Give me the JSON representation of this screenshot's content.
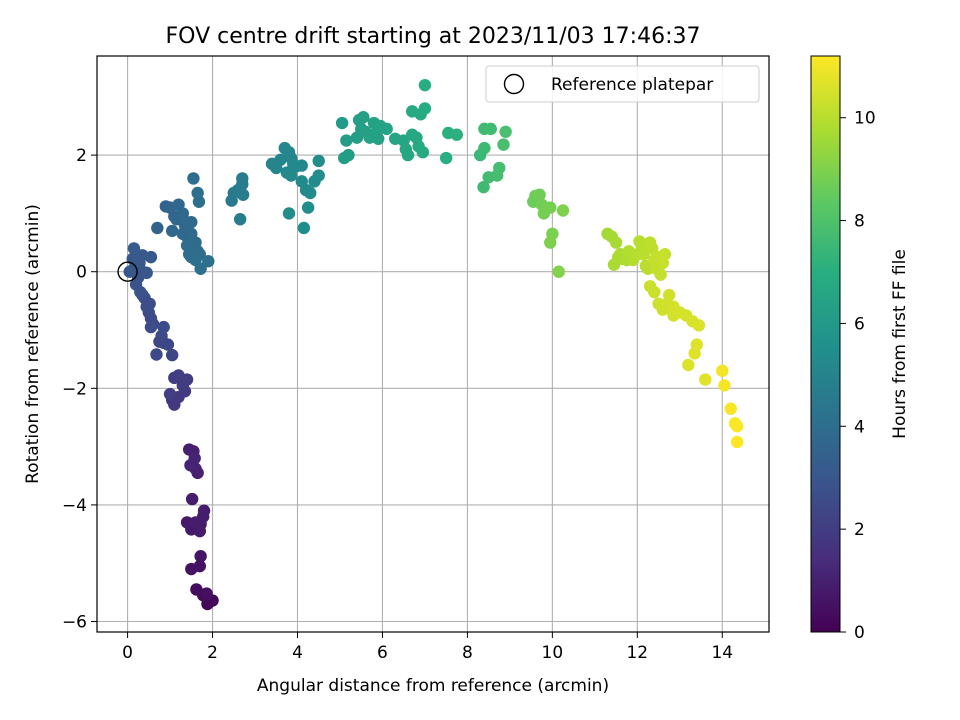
{
  "chart_data": {
    "type": "scatter",
    "title": "FOV centre drift starting at 2023/11/03 17:46:37",
    "xlabel": "Angular distance from reference (arcmin)",
    "ylabel": "Rotation from reference (arcmin)",
    "xlim": [
      -0.72,
      15.1
    ],
    "ylim": [
      -6.18,
      3.7
    ],
    "xticks": [
      "0",
      "2",
      "4",
      "6",
      "8",
      "10",
      "12",
      "14"
    ],
    "yticks": [
      "−6",
      "−4",
      "−2",
      "0",
      "2"
    ],
    "grid": true,
    "legend": {
      "placement": "top-right",
      "entries": [
        "Reference platepar"
      ]
    },
    "reference_point": {
      "x": 0,
      "y": 0
    },
    "colorbar": {
      "label": "Hours from first FF file",
      "colormap": "viridis",
      "range": [
        0,
        11.2
      ],
      "ticks": [
        "0",
        "2",
        "4",
        "6",
        "8",
        "10"
      ]
    },
    "series": [
      {
        "points": [
          [
            1.88,
            -5.7
          ],
          [
            2.0,
            -5.64
          ],
          [
            1.93,
            -5.66
          ],
          [
            1.78,
            -5.55
          ],
          [
            1.62,
            -5.45
          ],
          [
            1.86,
            -5.52
          ],
          [
            1.5,
            -5.1
          ],
          [
            1.7,
            -5.05
          ],
          [
            1.72,
            -4.88
          ],
          [
            1.4,
            -4.3
          ],
          [
            1.5,
            -4.42
          ],
          [
            1.62,
            -4.4
          ],
          [
            1.72,
            -4.33
          ],
          [
            1.78,
            -4.2
          ],
          [
            1.8,
            -4.1
          ],
          [
            1.7,
            -4.45
          ],
          [
            1.52,
            -3.9
          ],
          [
            1.6,
            -4.3
          ],
          [
            1.45,
            -3.05
          ],
          [
            1.55,
            -3.08
          ],
          [
            1.6,
            -3.38
          ],
          [
            1.65,
            -3.45
          ],
          [
            1.48,
            -3.32
          ],
          [
            1.58,
            -3.2
          ],
          [
            1.05,
            -2.2
          ],
          [
            1.1,
            -2.28
          ],
          [
            1.2,
            -2.15
          ],
          [
            1.35,
            -2.05
          ],
          [
            1.3,
            -1.95
          ],
          [
            1.4,
            -1.85
          ],
          [
            1.2,
            -1.78
          ],
          [
            1.1,
            -1.82
          ],
          [
            1.0,
            -2.1
          ],
          [
            0.75,
            -1.2
          ],
          [
            0.85,
            -1.22
          ],
          [
            0.95,
            -1.25
          ],
          [
            1.05,
            -1.43
          ],
          [
            0.68,
            -1.42
          ],
          [
            0.8,
            -1.1
          ],
          [
            0.6,
            -0.9
          ],
          [
            0.55,
            -0.8
          ],
          [
            0.5,
            -0.7
          ],
          [
            0.45,
            -0.6
          ],
          [
            0.52,
            -0.55
          ],
          [
            0.4,
            -0.45
          ],
          [
            0.35,
            -0.4
          ],
          [
            0.55,
            -0.95
          ],
          [
            0.85,
            -0.95
          ],
          [
            0.2,
            -0.22
          ],
          [
            0.3,
            -0.35
          ],
          [
            0.25,
            -0.1
          ],
          [
            0.15,
            0.05
          ],
          [
            0.35,
            0.0
          ],
          [
            0.45,
            -0.02
          ],
          [
            0.28,
            0.15
          ],
          [
            0.12,
            0.22
          ],
          [
            0.2,
            0.25
          ],
          [
            0.35,
            0.28
          ],
          [
            0.55,
            0.25
          ],
          [
            0.15,
            0.4
          ],
          [
            0.05,
            0.0
          ],
          [
            0.7,
            0.75
          ],
          [
            0.9,
            1.12
          ],
          [
            1.0,
            1.1
          ],
          [
            1.1,
            0.95
          ],
          [
            1.15,
            0.9
          ],
          [
            1.2,
            1.15
          ],
          [
            1.3,
            1.0
          ],
          [
            1.35,
            0.8
          ],
          [
            1.4,
            0.85
          ],
          [
            1.5,
            0.85
          ],
          [
            1.4,
            0.6
          ],
          [
            1.5,
            0.65
          ],
          [
            1.6,
            0.5
          ],
          [
            1.4,
            0.45
          ],
          [
            1.55,
            0.4
          ],
          [
            1.65,
            0.35
          ],
          [
            1.7,
            0.3
          ],
          [
            1.5,
            0.25
          ],
          [
            1.6,
            0.2
          ],
          [
            1.72,
            0.05
          ],
          [
            1.9,
            0.18
          ],
          [
            1.55,
            1.6
          ],
          [
            1.65,
            1.35
          ],
          [
            1.68,
            1.2
          ],
          [
            1.05,
            0.7
          ],
          [
            1.3,
            0.65
          ],
          [
            1.45,
            0.3
          ],
          [
            2.45,
            1.22
          ],
          [
            2.5,
            1.35
          ],
          [
            2.6,
            1.4
          ],
          [
            2.7,
            1.5
          ],
          [
            2.72,
            1.32
          ],
          [
            2.7,
            1.6
          ],
          [
            2.65,
            0.9
          ],
          [
            3.4,
            1.85
          ],
          [
            3.5,
            1.78
          ],
          [
            3.6,
            1.92
          ],
          [
            3.7,
            2.12
          ],
          [
            3.8,
            2.05
          ],
          [
            3.85,
            1.95
          ],
          [
            3.9,
            1.85
          ],
          [
            3.75,
            1.7
          ],
          [
            3.85,
            1.65
          ],
          [
            3.95,
            1.8
          ],
          [
            4.1,
            1.82
          ],
          [
            4.1,
            1.55
          ],
          [
            4.2,
            1.4
          ],
          [
            4.3,
            1.35
          ],
          [
            4.4,
            1.55
          ],
          [
            4.5,
            1.65
          ],
          [
            4.5,
            1.9
          ],
          [
            4.25,
            1.1
          ],
          [
            4.15,
            0.75
          ],
          [
            3.8,
            1.0
          ],
          [
            5.05,
            2.55
          ],
          [
            5.15,
            2.25
          ],
          [
            5.2,
            2.0
          ],
          [
            5.4,
            2.3
          ],
          [
            5.45,
            2.6
          ],
          [
            5.5,
            2.45
          ],
          [
            5.55,
            2.65
          ],
          [
            5.6,
            2.4
          ],
          [
            5.7,
            2.3
          ],
          [
            5.8,
            2.55
          ],
          [
            5.85,
            2.38
          ],
          [
            5.9,
            2.28
          ],
          [
            5.95,
            2.5
          ],
          [
            6.1,
            2.45
          ],
          [
            6.3,
            2.28
          ],
          [
            6.5,
            2.25
          ],
          [
            6.55,
            2.1
          ],
          [
            6.6,
            2.0
          ],
          [
            6.7,
            2.35
          ],
          [
            6.8,
            2.3
          ],
          [
            6.7,
            2.75
          ],
          [
            6.9,
            2.7
          ],
          [
            7.0,
            2.8
          ],
          [
            7.0,
            3.2
          ],
          [
            6.85,
            2.15
          ],
          [
            6.95,
            2.05
          ],
          [
            5.1,
            1.95
          ],
          [
            7.5,
            1.95
          ],
          [
            7.55,
            2.38
          ],
          [
            7.75,
            2.35
          ],
          [
            8.3,
            2.0
          ],
          [
            8.4,
            2.12
          ],
          [
            8.4,
            2.45
          ],
          [
            8.55,
            2.45
          ],
          [
            8.5,
            1.62
          ],
          [
            8.7,
            1.65
          ],
          [
            8.75,
            1.78
          ],
          [
            8.85,
            2.18
          ],
          [
            8.9,
            2.4
          ],
          [
            8.38,
            1.45
          ],
          [
            9.55,
            1.2
          ],
          [
            9.6,
            1.3
          ],
          [
            9.7,
            1.32
          ],
          [
            9.75,
            1.15
          ],
          [
            9.8,
            1.0
          ],
          [
            9.95,
            1.1
          ],
          [
            10.0,
            0.65
          ],
          [
            9.95,
            0.5
          ],
          [
            10.25,
            1.05
          ],
          [
            10.15,
            0.0
          ],
          [
            11.3,
            0.65
          ],
          [
            11.4,
            0.6
          ],
          [
            11.5,
            0.5
          ],
          [
            11.6,
            0.3
          ],
          [
            11.45,
            0.12
          ],
          [
            11.55,
            0.25
          ],
          [
            11.65,
            0.22
          ],
          [
            11.75,
            0.2
          ],
          [
            11.8,
            0.35
          ],
          [
            11.9,
            0.2
          ],
          [
            12.0,
            0.3
          ],
          [
            12.05,
            0.52
          ],
          [
            12.1,
            0.45
          ],
          [
            12.15,
            0.3
          ],
          [
            12.2,
            0.1
          ],
          [
            12.25,
            0.05
          ],
          [
            12.3,
            0.5
          ],
          [
            12.35,
            0.4
          ],
          [
            12.4,
            0.2
          ],
          [
            12.45,
            0.05
          ],
          [
            12.5,
            0.25
          ],
          [
            12.55,
            -0.05
          ],
          [
            12.6,
            0.15
          ],
          [
            12.65,
            0.3
          ],
          [
            12.3,
            -0.25
          ],
          [
            12.4,
            -0.35
          ],
          [
            12.5,
            -0.55
          ],
          [
            12.6,
            -0.65
          ],
          [
            12.7,
            -0.55
          ],
          [
            12.75,
            -0.4
          ],
          [
            12.85,
            -0.6
          ],
          [
            12.85,
            -0.75
          ],
          [
            13.0,
            -0.7
          ],
          [
            13.15,
            -0.75
          ],
          [
            13.3,
            -0.85
          ],
          [
            13.45,
            -0.92
          ],
          [
            13.2,
            -1.6
          ],
          [
            13.35,
            -1.4
          ],
          [
            13.4,
            -1.25
          ],
          [
            13.6,
            -1.85
          ],
          [
            14.0,
            -1.7
          ],
          [
            14.05,
            -1.95
          ],
          [
            14.2,
            -2.35
          ],
          [
            14.3,
            -2.6
          ],
          [
            14.35,
            -2.65
          ],
          [
            14.35,
            -2.92
          ]
        ],
        "hours": [
          0.1,
          0.15,
          0.2,
          0.3,
          0.35,
          0.4,
          0.5,
          0.55,
          0.6,
          0.75,
          0.8,
          0.8,
          0.85,
          0.85,
          0.9,
          0.9,
          0.9,
          0.85,
          0.95,
          1.0,
          1.05,
          1.05,
          1.1,
          1.1,
          1.7,
          1.8,
          1.85,
          1.9,
          1.95,
          1.95,
          2.0,
          2.0,
          2.05,
          2.3,
          2.35,
          2.4,
          2.4,
          2.45,
          2.45,
          2.5,
          2.55,
          2.55,
          2.6,
          2.6,
          2.65,
          2.7,
          2.6,
          2.55,
          2.8,
          2.85,
          2.9,
          2.95,
          3.0,
          3.0,
          3.05,
          3.1,
          3.1,
          3.1,
          3.15,
          3.2,
          3.05,
          3.55,
          3.6,
          3.65,
          3.65,
          3.7,
          3.7,
          3.75,
          3.75,
          3.8,
          3.8,
          3.85,
          3.9,
          3.9,
          3.95,
          3.95,
          4.0,
          4.0,
          4.05,
          4.05,
          4.1,
          4.1,
          4.0,
          4.05,
          4.05,
          3.7,
          3.8,
          4.0,
          4.5,
          4.55,
          4.6,
          4.6,
          4.65,
          4.65,
          4.7,
          5.0,
          5.05,
          5.05,
          5.1,
          5.1,
          5.15,
          5.15,
          5.2,
          5.2,
          5.25,
          5.25,
          5.3,
          5.3,
          5.35,
          5.35,
          5.4,
          5.4,
          5.45,
          5.45,
          5.4,
          6.1,
          6.15,
          6.2,
          6.2,
          6.25,
          6.25,
          6.3,
          6.3,
          6.35,
          6.35,
          6.4,
          6.4,
          6.45,
          6.45,
          6.5,
          6.55,
          6.6,
          6.65,
          6.7,
          6.7,
          6.75,
          6.8,
          6.85,
          6.9,
          6.75,
          6.8,
          6.2,
          7.0,
          7.05,
          7.1,
          7.5,
          7.55,
          7.6,
          7.65,
          7.7,
          7.75,
          7.8,
          7.85,
          7.9,
          7.6,
          8.6,
          8.65,
          8.7,
          8.75,
          8.8,
          8.85,
          8.9,
          8.95,
          9.0,
          9.05,
          9.6,
          9.65,
          9.7,
          9.75,
          9.75,
          9.8,
          9.8,
          9.85,
          9.9,
          9.9,
          9.95,
          9.95,
          10.0,
          10.0,
          10.05,
          10.05,
          10.1,
          10.1,
          10.15,
          10.15,
          10.2,
          10.2,
          10.25,
          10.25,
          10.3,
          10.3,
          10.35,
          10.35,
          10.4,
          10.4,
          10.45,
          10.45,
          10.5,
          10.5,
          10.55,
          10.6,
          10.6,
          10.65,
          10.65,
          10.7,
          11.0,
          11.05,
          11.1,
          11.15,
          11.15,
          11.2
        ]
      }
    ]
  }
}
